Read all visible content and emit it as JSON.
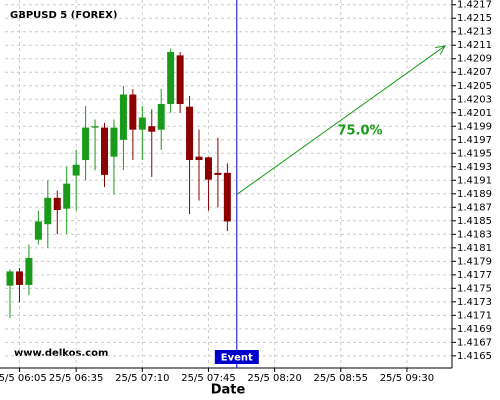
{
  "chart_data": {
    "type": "candlestick",
    "title": "GBPUSD 5 (FOREX)",
    "xlabel": "Date",
    "watermark": "www.delkos.com",
    "categories": [
      null,
      "25/5 06:05",
      null,
      null,
      null,
      null,
      null,
      "25/5 06:35",
      null,
      null,
      null,
      null,
      null,
      null,
      "25/5 07:10",
      null,
      null,
      null,
      null,
      null,
      null,
      "25/5 07:45",
      null,
      null,
      null,
      null,
      null,
      null,
      "25/5 08:20",
      null,
      null,
      null,
      null,
      null,
      null,
      "25/5 08:55",
      null,
      null,
      null,
      null,
      null,
      null,
      "25/5 09:30"
    ],
    "xlim": [
      -0.53,
      46.77
    ],
    "open": [
      1.41754,
      1.41775,
      1.41755,
      1.41822,
      1.41845,
      1.41884,
      1.41868,
      1.41917,
      1.4194,
      1.41988,
      1.41988,
      1.41945,
      1.4197,
      1.42037,
      1.41985,
      1.4199,
      1.41985,
      1.42023,
      1.42095,
      1.42019,
      1.41945,
      1.41944,
      1.41921,
      1.41921,
      null,
      null,
      null,
      null,
      null,
      null,
      null,
      null,
      null,
      null,
      null,
      null,
      null,
      null,
      null,
      null,
      null,
      null,
      null
    ],
    "high": [
      1.41778,
      1.4178,
      1.41815,
      1.41865,
      1.4191,
      1.41895,
      1.4193,
      1.41955,
      1.4202,
      1.42,
      1.41995,
      1.42,
      1.4205,
      1.42045,
      1.4202,
      1.42015,
      1.42045,
      1.42105,
      1.421,
      1.42035,
      1.41985,
      1.41945,
      1.41973,
      1.41935,
      null,
      null,
      null,
      null,
      null,
      null,
      null,
      null,
      null,
      null,
      null,
      null,
      null,
      null,
      null,
      null,
      null,
      null,
      null
    ],
    "low": [
      1.41706,
      1.41729,
      1.4174,
      1.41815,
      1.4181,
      1.4183,
      1.4183,
      1.41865,
      1.4191,
      1.41925,
      1.419,
      1.41889,
      1.41925,
      1.4194,
      1.4194,
      1.41915,
      1.41955,
      1.4201,
      1.4201,
      1.4186,
      1.4188,
      1.41865,
      1.4187,
      1.41835,
      null,
      null,
      null,
      null,
      null,
      null,
      null,
      null,
      null,
      null,
      null,
      null,
      null,
      null,
      null,
      null,
      null,
      null,
      null
    ],
    "close": [
      1.41775,
      1.41755,
      1.41795,
      1.41849,
      1.41884,
      1.41866,
      1.41905,
      1.41933,
      1.41988,
      1.4199,
      1.41918,
      1.41988,
      1.42037,
      1.41985,
      1.42003,
      1.41982,
      1.42023,
      1.421,
      1.42023,
      1.4194,
      1.4194,
      1.41911,
      1.41918,
      1.41849,
      null,
      null,
      null,
      null,
      null,
      null,
      null,
      null,
      null,
      null,
      null,
      null,
      null,
      null,
      null,
      null,
      null,
      null,
      null
    ],
    "up_color": "#1a9a1a",
    "down_color": "#8b0000",
    "ylim": [
      1.41632,
      1.42177
    ],
    "yticks": [
      1.4165,
      1.4167,
      1.4169,
      1.4171,
      1.4173,
      1.4175,
      1.4177,
      1.4179,
      1.4181,
      1.4183,
      1.4185,
      1.4187,
      1.4189,
      1.4191,
      1.4193,
      1.4195,
      1.4197,
      1.4199,
      1.4201,
      1.4203,
      1.4205,
      1.4207,
      1.4209,
      1.4211,
      1.4213,
      1.4215,
      1.4217
    ],
    "grid": true,
    "event": {
      "label": "Event",
      "x": 24,
      "color": "#0000cc"
    },
    "forecast": {
      "label": "75.0%",
      "from": 1.41889,
      "to": 1.42109,
      "color": "#1a9a1a"
    }
  }
}
